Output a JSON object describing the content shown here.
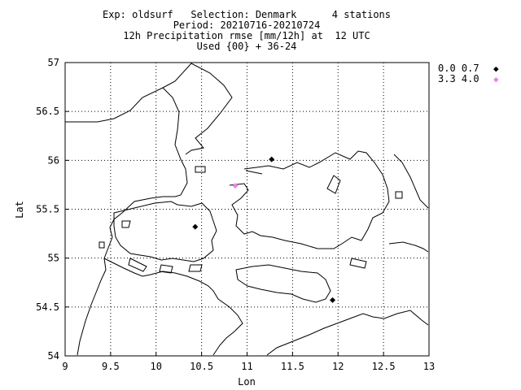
{
  "header": {
    "line1": "Exp: oldsurf   Selection: Denmark      4 stations",
    "line2": "Period: 20210716-20210724",
    "line3": "12h Precipitation rmse [mm/12h] at  12 UTC",
    "line4": "Used {00} + 36-24"
  },
  "chart_data": {
    "type": "scatter",
    "title": "12h Precipitation rmse [mm/12h] at  12 UTC",
    "xlabel": "Lon",
    "ylabel": "Lat",
    "xlim": [
      9,
      13
    ],
    "ylim": [
      54,
      57
    ],
    "x_ticks": [
      "9",
      "9.5",
      "10",
      "10.5",
      "11",
      "11.5",
      "12",
      "12.5",
      "13"
    ],
    "y_ticks": [
      "54",
      "54.5",
      "55",
      "55.5",
      "56",
      "56.5",
      "57"
    ],
    "grid": true,
    "legend_position": "top-right",
    "legend": [
      {
        "label": "0.0 0.7",
        "color": "#000000",
        "marker": "diamond"
      },
      {
        "label": "3.3 4.0",
        "color": "#ee82ee",
        "marker": "diamond"
      }
    ],
    "points": [
      {
        "lon": 11.27,
        "lat": 56.01,
        "class": 0
      },
      {
        "lon": 10.43,
        "lat": 55.32,
        "class": 0
      },
      {
        "lon": 11.94,
        "lat": 54.57,
        "class": 0
      },
      {
        "lon": 10.87,
        "lat": 55.74,
        "class": 1
      }
    ]
  }
}
